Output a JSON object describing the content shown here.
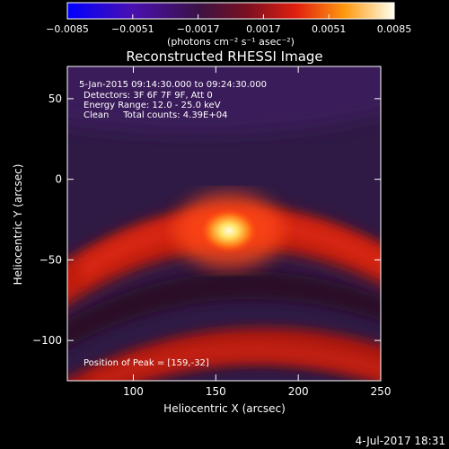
{
  "chart_data": {
    "type": "heatmap",
    "title": "Reconstructed RHESSI Image",
    "xlabel": "Heliocentric X (arcsec)",
    "ylabel": "Heliocentric Y (arcsec)",
    "xlim": [
      60,
      250
    ],
    "ylim": [
      -125,
      70
    ],
    "x_ticks": [
      "100",
      "150",
      "200",
      "250"
    ],
    "y_ticks": [
      "50",
      "0",
      "−50",
      "−100"
    ],
    "x_tick_values": [
      100,
      150,
      200,
      250
    ],
    "y_tick_values": [
      50,
      0,
      -50,
      -100
    ],
    "colorbar": {
      "ticks": [
        "−0.0085",
        "−0.0051",
        "−0.0017",
        "0.0017",
        "0.0051",
        "0.0085"
      ],
      "tick_values": [
        -0.0085,
        -0.0051,
        -0.0017,
        0.0017,
        0.0051,
        0.0085
      ],
      "range": [
        -0.0085,
        0.0085
      ],
      "units": "(photons cm⁻² s⁻¹ asec⁻²)",
      "colormap": "blue-purple-red-yellow-white"
    },
    "annotations": {
      "time_range": "5-Jan-2015 09:14:30.000 to 09:24:30.000",
      "detectors": "Detectors: 3F 6F 7F 9F, Att 0",
      "energy": "Energy Range: 12.0 - 25.0 keV",
      "clean": "Clean     Total counts: 4.39E+04",
      "peak_label": "Position of Peak = [159,-32]"
    },
    "peak": {
      "x": 159,
      "y": -32
    },
    "footer_date": "4-Jul-2017 18:31"
  }
}
